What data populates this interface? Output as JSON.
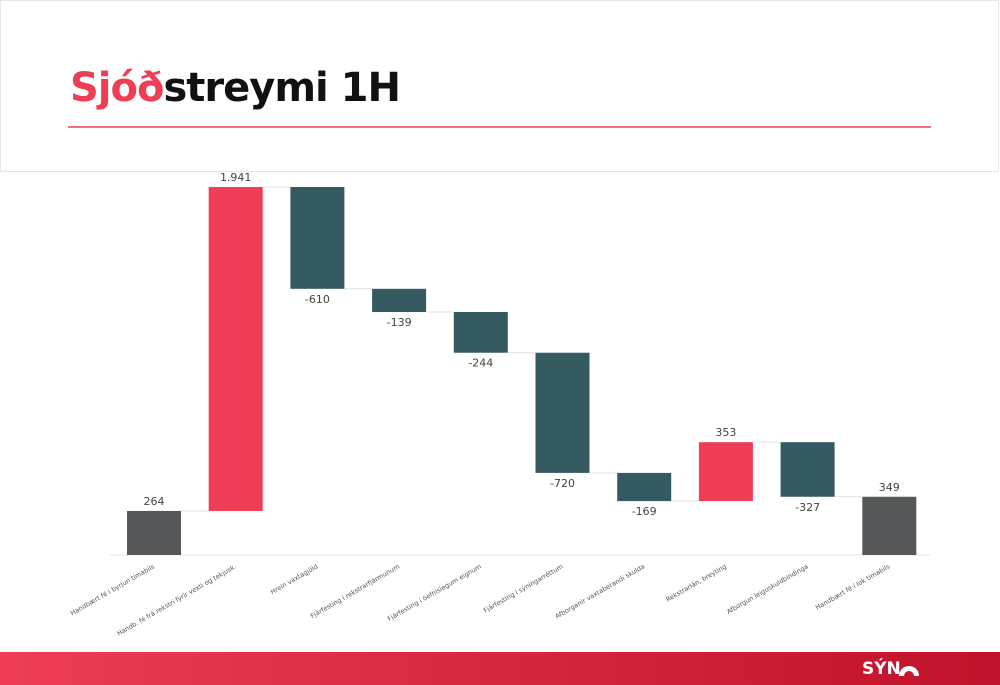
{
  "header": {
    "accent": "Sjóð",
    "text": "streymi 1H"
  },
  "logo": "SÝN",
  "chart_data": {
    "type": "waterfall",
    "categories": [
      "Handbært fé í byrjun tímabils",
      "Handb. fé frá rekstri fyrir vexti og tekjusk.",
      "Hrein vaxtagjöld",
      "Fjárfesting í rekstrarfjármunum",
      "Fjárfesting í óefnislegum eignum",
      "Fjárfesting í sýningarréttum",
      "Afborganir vaxtaberandi skulda",
      "Rekstrarlán, breyting",
      "Afborgun leiguskuldbindinga",
      "Handbært fé í lok tímabils"
    ],
    "values": [
      264,
      1941,
      -610,
      -139,
      -244,
      -720,
      -169,
      353,
      -327,
      349
    ],
    "value_labels": [
      "264",
      "1.941",
      "-610",
      "-139",
      "-244",
      "-720",
      "-169",
      "353",
      "-327",
      "349"
    ],
    "measures": [
      "absolute",
      "relative",
      "relative",
      "relative",
      "relative",
      "relative",
      "relative",
      "relative",
      "relative",
      "total"
    ],
    "colors": {
      "total": "#555759",
      "increase": "#ee3d55",
      "decrease": "#355a60"
    }
  }
}
